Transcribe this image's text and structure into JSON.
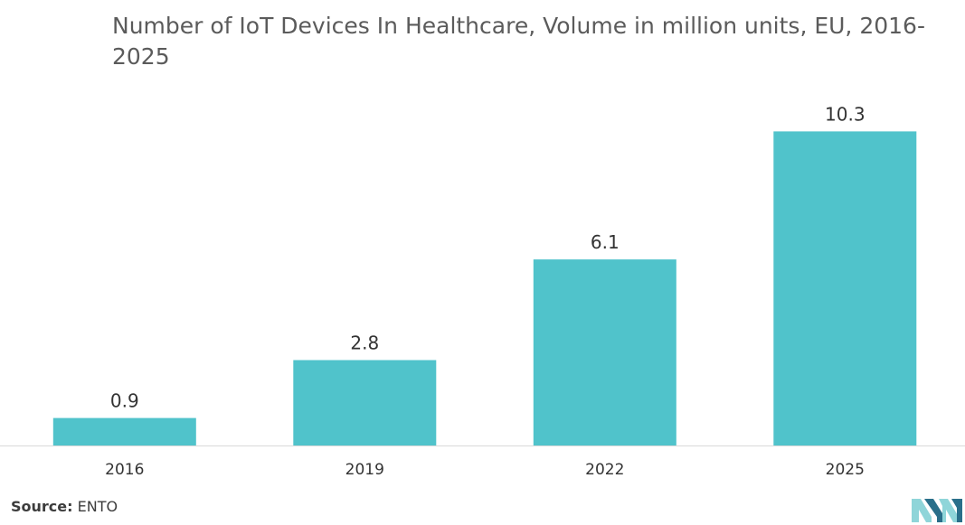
{
  "page": {
    "source_label": "Source:",
    "source_value": "ENTO"
  },
  "chart_data": {
    "type": "bar",
    "title": "Number of IoT Devices In Healthcare, Volume in million units, EU, 2016-2025",
    "categories": [
      "2016",
      "2019",
      "2022",
      "2025"
    ],
    "values": [
      0.9,
      2.8,
      6.1,
      10.3
    ],
    "value_labels": [
      "0.9",
      "2.8",
      "6.1",
      "10.3"
    ],
    "xlabel": "",
    "ylabel": "",
    "ylim": [
      0,
      11.2
    ],
    "grid": false,
    "legend": "none",
    "bar_color": "#50c3cb",
    "axis_color": "#d9d9d9",
    "label_color": "#333333"
  },
  "logo": {
    "icon": "mordor-intelligence-logo-icon",
    "color_light": "#8fd5d9",
    "color_dark": "#2a6f8a"
  }
}
